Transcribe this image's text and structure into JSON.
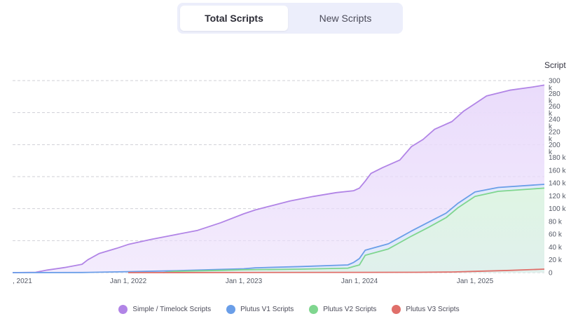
{
  "tabs": [
    {
      "label": "Total Scripts",
      "active": true
    },
    {
      "label": "New Scripts",
      "active": false
    }
  ],
  "colors": {
    "simple": "#b184e6",
    "plutus_v1": "#6a9ee8",
    "plutus_v2": "#7fd68f",
    "plutus_v3": "#e06f6a",
    "simple_fill": "#eadcfb",
    "v2_fill": "#dff5e3",
    "grid": "#cfcfd6"
  },
  "chart_data": {
    "type": "area",
    "ylabel": "Script",
    "ylim": [
      0,
      300000
    ],
    "y_ticks": [
      {
        "value": 0,
        "label": "0"
      },
      {
        "value": 20000,
        "label": "20 k"
      },
      {
        "value": 40000,
        "label": "40 k"
      },
      {
        "value": 60000,
        "label": "60 k"
      },
      {
        "value": 80000,
        "label": "80 k"
      },
      {
        "value": 100000,
        "label": "100 k"
      },
      {
        "value": 120000,
        "label": "120 k"
      },
      {
        "value": 140000,
        "label": "140 k"
      },
      {
        "value": 160000,
        "label": "160 k"
      },
      {
        "value": 180000,
        "label": "180 k"
      },
      {
        "value": 200000,
        "label": "200\nk"
      },
      {
        "value": 220000,
        "label": "220\nk"
      },
      {
        "value": 240000,
        "label": "240\nk"
      },
      {
        "value": 260000,
        "label": "260\nk"
      },
      {
        "value": 280000,
        "label": "280\nk"
      },
      {
        "value": 300000,
        "label": "300\nk"
      }
    ],
    "xlim": [
      2021.0,
      2025.6
    ],
    "x_ticks": [
      {
        "value": 2021.0,
        "label": ", 2021"
      },
      {
        "value": 2022.0,
        "label": "Jan 1, 2022"
      },
      {
        "value": 2023.0,
        "label": "Jan 1, 2023"
      },
      {
        "value": 2024.0,
        "label": "Jan 1, 2024"
      },
      {
        "value": 2025.0,
        "label": "Jan 1, 2025"
      }
    ],
    "grid_values": [
      0,
      50000,
      100000,
      150000,
      200000,
      250000,
      300000
    ],
    "legend_position": "bottom",
    "series": [
      {
        "name": "Simple / Timelock Scripts",
        "key": "simple",
        "points": [
          [
            2021.0,
            0
          ],
          [
            2021.2,
            500
          ],
          [
            2021.3,
            4000
          ],
          [
            2021.45,
            8000
          ],
          [
            2021.6,
            13000
          ],
          [
            2021.65,
            20000
          ],
          [
            2021.75,
            30000
          ],
          [
            2021.9,
            38000
          ],
          [
            2022.0,
            44000
          ],
          [
            2022.2,
            52000
          ],
          [
            2022.4,
            59000
          ],
          [
            2022.6,
            66000
          ],
          [
            2022.8,
            78000
          ],
          [
            2023.0,
            92000
          ],
          [
            2023.1,
            98000
          ],
          [
            2023.25,
            105000
          ],
          [
            2023.4,
            112000
          ],
          [
            2023.6,
            119000
          ],
          [
            2023.8,
            125000
          ],
          [
            2023.95,
            128000
          ],
          [
            2024.0,
            132000
          ],
          [
            2024.05,
            143000
          ],
          [
            2024.1,
            155000
          ],
          [
            2024.2,
            164000
          ],
          [
            2024.35,
            176000
          ],
          [
            2024.45,
            197000
          ],
          [
            2024.55,
            208000
          ],
          [
            2024.65,
            224000
          ],
          [
            2024.8,
            236000
          ],
          [
            2024.9,
            252000
          ],
          [
            2025.0,
            264000
          ],
          [
            2025.1,
            276000
          ],
          [
            2025.3,
            285000
          ],
          [
            2025.5,
            290000
          ],
          [
            2025.6,
            293000
          ]
        ]
      },
      {
        "name": "Plutus V1 Scripts",
        "key": "plutus_v1",
        "points": [
          [
            2021.0,
            0
          ],
          [
            2021.6,
            200
          ],
          [
            2022.0,
            1500
          ],
          [
            2022.4,
            3000
          ],
          [
            2022.8,
            5000
          ],
          [
            2023.0,
            6000
          ],
          [
            2023.1,
            7500
          ],
          [
            2023.5,
            9500
          ],
          [
            2023.9,
            12000
          ],
          [
            2023.95,
            16000
          ],
          [
            2024.0,
            22000
          ],
          [
            2024.05,
            35000
          ],
          [
            2024.25,
            45000
          ],
          [
            2024.35,
            55000
          ],
          [
            2024.45,
            65000
          ],
          [
            2024.6,
            79000
          ],
          [
            2024.75,
            93000
          ],
          [
            2024.85,
            108000
          ],
          [
            2025.0,
            126000
          ],
          [
            2025.2,
            133000
          ],
          [
            2025.6,
            138000
          ]
        ]
      },
      {
        "name": "Plutus V2 Scripts",
        "key": "plutus_v2",
        "points": [
          [
            2022.3,
            0
          ],
          [
            2022.4,
            2000
          ],
          [
            2022.8,
            3500
          ],
          [
            2023.0,
            4500
          ],
          [
            2023.5,
            5500
          ],
          [
            2023.9,
            7000
          ],
          [
            2024.0,
            12000
          ],
          [
            2024.05,
            27000
          ],
          [
            2024.25,
            37000
          ],
          [
            2024.35,
            47000
          ],
          [
            2024.45,
            57000
          ],
          [
            2024.6,
            71000
          ],
          [
            2024.75,
            86000
          ],
          [
            2024.85,
            101000
          ],
          [
            2025.0,
            119000
          ],
          [
            2025.2,
            127000
          ],
          [
            2025.6,
            132000
          ]
        ]
      },
      {
        "name": "Plutus V3 Scripts",
        "key": "plutus_v3",
        "points": [
          [
            2022.0,
            0
          ],
          [
            2024.5,
            500
          ],
          [
            2024.8,
            1000
          ],
          [
            2025.0,
            2000
          ],
          [
            2025.3,
            3500
          ],
          [
            2025.6,
            5500
          ]
        ]
      }
    ]
  },
  "legend": [
    {
      "label": "Simple / Timelock Scripts",
      "color_key": "simple"
    },
    {
      "label": "Plutus V1 Scripts",
      "color_key": "plutus_v1"
    },
    {
      "label": "Plutus V2 Scripts",
      "color_key": "plutus_v2"
    },
    {
      "label": "Plutus V3 Scripts",
      "color_key": "plutus_v3"
    }
  ]
}
